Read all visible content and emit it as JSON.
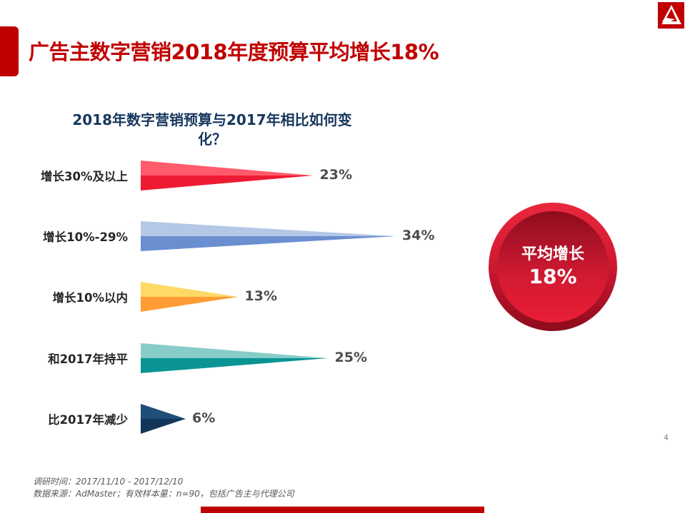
{
  "slide": {
    "title": "广告主数字营销2018年度预算平均增长18%",
    "page_number": "4",
    "accent_color": "#c00000"
  },
  "logo": {
    "icon": "brand-logo-icon",
    "color": "#c00000"
  },
  "badge": {
    "text": "平均增长",
    "value": "18%",
    "color": "#d61c32"
  },
  "footnotes": {
    "survey_period": "调研时间：2017/11/10 - 2017/12/10",
    "data_source": "数据来源：AdMaster；有效样本量：n=90，包括广告主与代理公司"
  },
  "chart_data": {
    "type": "bar",
    "orientation": "horizontal",
    "style": "triangle-funnel",
    "title": "2018年数字营销预算与2017年相比如何变化？",
    "title_line1": "2018年数字营销预算与2017年相比如何变",
    "title_line2": "化？",
    "xlabel": "",
    "ylabel": "",
    "grid": false,
    "legend": "none",
    "categories": [
      "增长30%及以上",
      "增长10%-29%",
      "增长10%以内",
      "和2017年持平",
      "比2017年减少"
    ],
    "values": [
      23,
      34,
      13,
      25,
      6
    ],
    "value_labels": [
      "23%",
      "34%",
      "13%",
      "25%",
      "6%"
    ],
    "unit": "%",
    "series_colors": [
      {
        "top": "#ff5b6b",
        "bottom": "#ee1a33"
      },
      {
        "top": "#b4c7e7",
        "bottom": "#6a8fd1"
      },
      {
        "top": "#ffd966",
        "bottom": "#ff9c33"
      },
      {
        "top": "#88ccc8",
        "bottom": "#0a9494"
      },
      {
        "top": "#1f4e79",
        "bottom": "#12365a"
      }
    ]
  }
}
